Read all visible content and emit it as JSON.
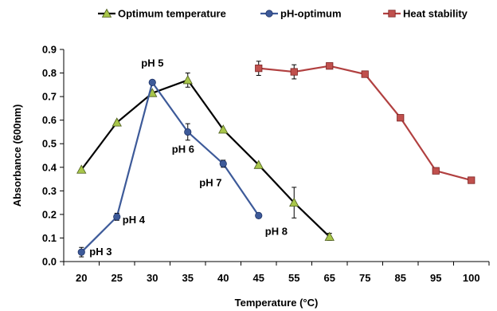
{
  "chart_data": {
    "type": "line",
    "title": "",
    "xlabel": "Temperature (°C)",
    "ylabel": "Absorbance (600nm)",
    "ylim": [
      0,
      0.9
    ],
    "yticks": [
      "0.0",
      "0.1",
      "0.2",
      "0.3",
      "0.4",
      "0.5",
      "0.6",
      "0.7",
      "0.8",
      "0.9"
    ],
    "categories": [
      "20",
      "25",
      "30",
      "35",
      "40",
      "45",
      "55",
      "65",
      "75",
      "85",
      "95",
      "100"
    ],
    "legend_position": "top",
    "grid": false,
    "series": [
      {
        "name": "Optimum temperature",
        "line_color": "#000000",
        "marker": "triangle",
        "marker_color": "#a8c64a",
        "points": [
          {
            "x": "20",
            "y": 0.39
          },
          {
            "x": "25",
            "y": 0.59
          },
          {
            "x": "30",
            "y": 0.715
          },
          {
            "x": "35",
            "y": 0.77,
            "err": 0.03
          },
          {
            "x": "40",
            "y": 0.56
          },
          {
            "x": "45",
            "y": 0.41
          },
          {
            "x": "55",
            "y": 0.25,
            "err": 0.065
          },
          {
            "x": "65",
            "y": 0.105,
            "err": 0.015
          }
        ]
      },
      {
        "name": "pH-optimum",
        "line_color": "#3d5a99",
        "marker": "circle",
        "marker_color": "#3d5a99",
        "points": [
          {
            "x": "20",
            "y": 0.04,
            "err": 0.02,
            "label": "pH 3"
          },
          {
            "x": "25",
            "y": 0.19,
            "err": 0.015,
            "label": "pH 4"
          },
          {
            "x": "30",
            "y": 0.76,
            "label": "pH 5"
          },
          {
            "x": "35",
            "y": 0.55,
            "err": 0.035,
            "label": "pH 6"
          },
          {
            "x": "40",
            "y": 0.415,
            "err": 0.015,
            "label": "pH 7"
          },
          {
            "x": "45",
            "y": 0.195,
            "err": 0.01,
            "label": "pH 8"
          }
        ]
      },
      {
        "name": "Heat stability",
        "line_color": "#b14040",
        "marker": "square",
        "marker_color": "#c0504d",
        "points": [
          {
            "x": "45",
            "y": 0.82,
            "err": 0.03
          },
          {
            "x": "55",
            "y": 0.805,
            "err": 0.03
          },
          {
            "x": "65",
            "y": 0.83,
            "err": 0.01
          },
          {
            "x": "75",
            "y": 0.795
          },
          {
            "x": "85",
            "y": 0.61
          },
          {
            "x": "95",
            "y": 0.385
          },
          {
            "x": "100",
            "y": 0.345
          }
        ]
      }
    ]
  }
}
